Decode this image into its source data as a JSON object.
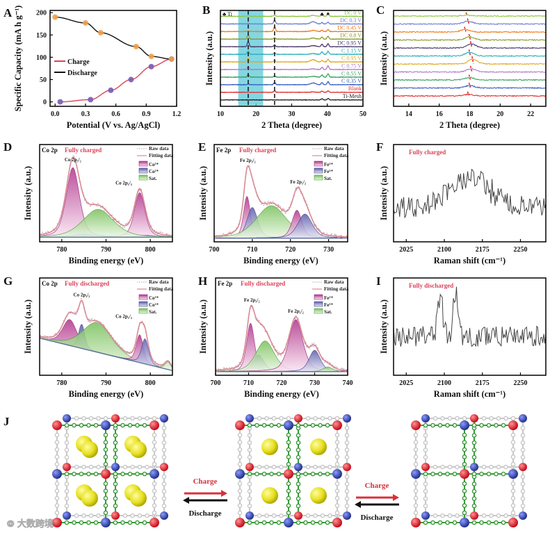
{
  "chart_data": [
    {
      "panel": "A",
      "type": "line",
      "xlabel": "Potential (V vs. Ag/AgCl)",
      "ylabel": "Specific Capacity (mA h g⁻¹)",
      "xlim": [
        -0.05,
        1.2
      ],
      "ylim": [
        -10,
        205
      ],
      "xticks": [
        "0.0",
        "0.3",
        "0.6",
        "0.9",
        "1.2"
      ],
      "yticks": [
        "0",
        "50",
        "100",
        "150",
        "200"
      ],
      "legend": [
        "Charge",
        "Discharge"
      ],
      "legend_position": "center-left",
      "series": [
        {
          "name": "Charge",
          "color": "#d9445a",
          "marker_color": "#7b5bb5",
          "x": [
            0.05,
            0.35,
            0.55,
            0.75,
            0.95,
            1.15
          ],
          "y": [
            0,
            5,
            26,
            50,
            79,
            96
          ]
        },
        {
          "name": "Discharge",
          "color": "#111111",
          "marker_color": "#f0a04b",
          "x": [
            0,
            0.3,
            0.45,
            0.8,
            0.95,
            1.15
          ],
          "y": [
            190,
            177,
            155,
            124,
            102,
            96
          ]
        }
      ]
    },
    {
      "panel": "B",
      "type": "line",
      "xlabel": "2 Theta (degree)",
      "ylabel": "Intensity (a.u.)",
      "xlim": [
        10,
        50
      ],
      "ylim": [
        0,
        13
      ],
      "xticks": [
        "10",
        "20",
        "30",
        "40",
        "50"
      ],
      "yticks": [],
      "highlight_range": [
        15,
        22
      ],
      "dashed_lines": [
        17.8,
        25.2
      ],
      "ti_label": "♣ Ti",
      "marker_club": "♣",
      "marker_spade": "♠",
      "peak_positions": [
        17.8,
        25.2,
        36,
        38.5,
        40.2
      ],
      "series": [
        {
          "label": "DC 0 V",
          "color": "#8dc63f",
          "peak_heights": [
            0.1,
            0.15,
            0.12,
            0.35,
            0.4
          ]
        },
        {
          "label": "DC 0.3 V",
          "color": "#6c7fd0",
          "peak_heights": [
            0.1,
            0.55,
            0.3,
            0.2,
            0.25
          ]
        },
        {
          "label": "DC 0.45 V",
          "color": "#f07a1a",
          "peak_heights": [
            0.1,
            0.7,
            0.15,
            0.2,
            0.25
          ]
        },
        {
          "label": "DC 0.8 V",
          "color": "#8a9a2a",
          "peak_heights": [
            0.6,
            0.2,
            0.15,
            0.3,
            0.4
          ]
        },
        {
          "label": "DC 0.95 V",
          "color": "#4a3a6a",
          "peak_heights": [
            0.7,
            0.25,
            0.15,
            0.35,
            0.4
          ]
        },
        {
          "label": "C 1.15 V",
          "color": "#2ab0b8",
          "peak_heights": [
            0.45,
            0.2,
            0.1,
            0.35,
            0.4
          ]
        },
        {
          "label": "C 0.95 V",
          "color": "#e0a820",
          "peak_heights": [
            0.5,
            0.2,
            0.3,
            0.2,
            0.35
          ]
        },
        {
          "label": "C 0.75 V",
          "color": "#b07ac8",
          "peak_heights": [
            0.4,
            0.15,
            0.1,
            0.3,
            0.5
          ]
        },
        {
          "label": "C 0.55 V",
          "color": "#3aa060",
          "peak_heights": [
            0.35,
            0.15,
            0.1,
            0.3,
            0.45
          ]
        },
        {
          "label": "C 0.35 V",
          "color": "#3a60c0",
          "peak_heights": [
            0.1,
            0.3,
            0.25,
            0.3,
            0.4
          ]
        },
        {
          "label": "Blank",
          "color": "#e03030",
          "peak_heights": [
            0.05,
            0.2,
            0.05,
            0.15,
            0.2
          ]
        },
        {
          "label": "Ti-Mesh",
          "color": "#222222",
          "peak_heights": [
            0,
            0,
            0,
            0.15,
            0.2
          ]
        }
      ]
    },
    {
      "panel": "C",
      "type": "line",
      "xlabel": "2 Theta (degree)",
      "ylabel": "Intensity (a.u.)",
      "xlim": [
        13,
        23
      ],
      "ylim": [
        0,
        12
      ],
      "xticks": [
        "14",
        "16",
        "18",
        "20",
        "22"
      ],
      "yticks": [],
      "series": [
        {
          "color": "#8dc63f",
          "peak_center": 17.8,
          "peak_height": 0.1
        },
        {
          "color": "#6c7fd0",
          "peak_center": 17.9,
          "peak_height": 0.35
        },
        {
          "color": "#f07a1a",
          "peak_center": 17.7,
          "peak_height": 0.3
        },
        {
          "color": "#8a9a2a",
          "peak_center": 18.0,
          "peak_height": 0.4
        },
        {
          "color": "#4a3a6a",
          "peak_center": 18.1,
          "peak_height": 0.5
        },
        {
          "color": "#2ab0b8",
          "peak_center": 18.0,
          "peak_height": 0.45
        },
        {
          "color": "#e0a820",
          "peak_center": 18.2,
          "peak_height": 0.6
        },
        {
          "color": "#b07ac8",
          "peak_center": 18.1,
          "peak_height": 0.4
        },
        {
          "color": "#3aa060",
          "peak_center": 18.0,
          "peak_height": 0.3
        },
        {
          "color": "#3a60c0",
          "peak_center": 18.0,
          "peak_height": 0.3
        },
        {
          "color": "#e03030",
          "peak_center": 17.9,
          "peak_height": 0.2
        }
      ]
    },
    {
      "panel": "D",
      "type": "area",
      "title": "Co 2p",
      "state": "Fully charged",
      "xlabel": "Binding energy (eV)",
      "ylabel": "Intensity (a.u.)",
      "xlim": [
        775,
        805
      ],
      "ylim": [
        0,
        1.05
      ],
      "xticks": [
        "780",
        "790",
        "800"
      ],
      "yticks": [],
      "baseline": [
        0.05,
        0.05
      ],
      "legend": [
        "Raw data",
        "Fitting data",
        "Co³⁺",
        "Co²⁺",
        "Sat."
      ],
      "peak_labels": [
        {
          "text": "Co 2p₃/₂",
          "at": 782.5
        },
        {
          "text": "Co 2p₁/₂",
          "at": 797.6
        }
      ],
      "components": [
        {
          "name": "Co³⁺",
          "kind": "a",
          "center": 782.5,
          "height": 0.75,
          "width": 1.5
        },
        {
          "name": "Co³⁺",
          "kind": "a",
          "center": 797.6,
          "height": 0.48,
          "width": 1.2
        },
        {
          "name": "Co²⁺",
          "kind": "b",
          "center": 785,
          "height": 0.03,
          "width": 3
        },
        {
          "name": "Co²⁺",
          "kind": "b",
          "center": 799,
          "height": 0.02,
          "width": 2
        },
        {
          "name": "Sat.",
          "kind": "c",
          "center": 788.2,
          "height": 0.3,
          "width": 3.5
        }
      ]
    },
    {
      "panel": "E",
      "type": "area",
      "title": "Fe 2p",
      "state": "Fully charged",
      "xlabel": "Binding energy (eV)",
      "ylabel": "Intensity (a.u.)",
      "xlim": [
        700,
        735
      ],
      "ylim": [
        0,
        1.05
      ],
      "xticks": [
        "700",
        "710",
        "720",
        "730"
      ],
      "yticks": [],
      "baseline": [
        0.04,
        0.04
      ],
      "legend": [
        "Raw data",
        "Fitting data",
        "Fe²⁺",
        "Fe³⁺",
        "Sat."
      ],
      "peak_labels": [
        {
          "text": "Fe 2p₃/₂",
          "at": 708.8
        },
        {
          "text": "Fe 2p₁/₂",
          "at": 722
        }
      ],
      "components": [
        {
          "name": "Fe²⁺",
          "kind": "a",
          "center": 708.6,
          "height": 0.45,
          "width": 0.9
        },
        {
          "name": "Fe³⁺",
          "kind": "b",
          "center": 710,
          "height": 0.33,
          "width": 1.4
        },
        {
          "name": "Sat.",
          "kind": "c",
          "center": 715,
          "height": 0.35,
          "width": 4
        },
        {
          "name": "Fe²⁺",
          "kind": "a",
          "center": 721.7,
          "height": 0.3,
          "width": 1.3
        },
        {
          "name": "Fe³⁺",
          "kind": "b",
          "center": 723.8,
          "height": 0.26,
          "width": 1.9
        }
      ]
    },
    {
      "panel": "F",
      "type": "line",
      "state": "Fully charged",
      "xlabel": "Raman shift (cm⁻¹)",
      "ylabel": "Intensity (a.u.)",
      "xlim": [
        2000,
        2300
      ],
      "ylim": [
        0,
        1
      ],
      "xticks": [
        "2025",
        "2100",
        "2175",
        "2250"
      ],
      "yticks": [],
      "baseline": 0.35,
      "noise": 0.22,
      "peaks": [
        {
          "center": 2150,
          "height": 0.32,
          "width": 40
        }
      ]
    },
    {
      "panel": "G",
      "type": "area",
      "title": "Co 2p",
      "state": "Fully discharged",
      "xlabel": "Binding energy (eV)",
      "ylabel": "Intensity (a.u.)",
      "xlim": [
        775,
        805
      ],
      "ylim": [
        0,
        1.05
      ],
      "xticks": [
        "780",
        "790",
        "800"
      ],
      "yticks": [],
      "baseline": [
        0.4,
        0.05
      ],
      "legend": [
        "Raw data",
        "Fitting data",
        "Co³⁺",
        "Co²⁺",
        "Sat."
      ],
      "peak_labels": [
        {
          "text": "Co 2p₃/₂",
          "at": 784.5
        },
        {
          "text": "Co 2p₁/₂",
          "at": 798
        }
      ],
      "components": [
        {
          "name": "Co³⁺",
          "kind": "a",
          "center": 781.8,
          "height": 0.28,
          "width": 1.6
        },
        {
          "name": "Co²⁺",
          "kind": "b",
          "center": 784.5,
          "height": 0.26,
          "width": 0.7
        },
        {
          "name": "Sat.",
          "kind": "c",
          "center": 788,
          "height": 0.32,
          "width": 3.3
        },
        {
          "name": "Co³⁺",
          "kind": "a",
          "center": 797.6,
          "height": 0.3,
          "width": 0.8
        },
        {
          "name": "Co²⁺",
          "kind": "b",
          "center": 798.8,
          "height": 0.27,
          "width": 0.8
        },
        {
          "name": "Sat.",
          "kind": "c",
          "center": 804,
          "height": 0.08,
          "width": 0.7
        }
      ]
    },
    {
      "panel": "H",
      "type": "area",
      "title": "Fe 2p",
      "state": "Fully discharged",
      "xlabel": "Binding energy (eV)",
      "ylabel": "Intensity (a.u.)",
      "xlim": [
        700,
        740
      ],
      "ylim": [
        0,
        1.05
      ],
      "xticks": [
        "700",
        "710",
        "720",
        "730",
        "740"
      ],
      "yticks": [],
      "baseline": [
        0.04,
        0.04
      ],
      "legend": [
        "Raw data",
        "Fitting data",
        "Fe²⁺",
        "Fe³⁺",
        "Sat."
      ],
      "peak_labels": [
        {
          "text": "Fe 2p₃/₂",
          "at": 711
        },
        {
          "text": "Fe 2p₁/₂",
          "at": 724.3
        }
      ],
      "components": [
        {
          "name": "Fe²⁺",
          "kind": "a",
          "center": 710.6,
          "height": 0.52,
          "width": 1.2
        },
        {
          "name": "Fe³⁺",
          "kind": "b",
          "center": 713,
          "height": 0.18,
          "width": 1.7
        },
        {
          "name": "Sat.",
          "kind": "c",
          "center": 715,
          "height": 0.33,
          "width": 2.8
        },
        {
          "name": "Fe²⁺",
          "kind": "a",
          "center": 724.3,
          "height": 0.56,
          "width": 2.1
        },
        {
          "name": "Fe³⁺",
          "kind": "b",
          "center": 730,
          "height": 0.23,
          "width": 1.7
        },
        {
          "name": "Sat.",
          "kind": "c",
          "center": 734,
          "height": 0.05,
          "width": 1.4
        }
      ]
    },
    {
      "panel": "I",
      "type": "line",
      "state": "Fully discharged",
      "xlabel": "Raman shift (cm⁻¹)",
      "ylabel": "Intensity (a.u.)",
      "xlim": [
        2000,
        2300
      ],
      "ylim": [
        0,
        1
      ],
      "xticks": [
        "2025",
        "2100",
        "2175",
        "2250"
      ],
      "yticks": [],
      "baseline": 0.4,
      "noise": 0.22,
      "peaks": [
        {
          "center": 2092,
          "height": 0.42,
          "width": 5
        },
        {
          "center": 2122,
          "height": 0.42,
          "width": 5
        }
      ]
    }
  ],
  "schematic": {
    "panel": "J",
    "structures": [
      {
        "guests_per_cell": 2
      },
      {
        "guests_per_cell": 1
      },
      {
        "guests_per_cell": 0
      }
    ],
    "arrows": [
      {
        "forward": "Charge",
        "backward": "Discharge"
      },
      {
        "forward": "Charge",
        "backward": "Discharge"
      }
    ],
    "colors": {
      "charge": "#d9303a",
      "discharge": "#111111",
      "guest": "#e6e020",
      "node_red": "#e0202a",
      "node_blue": "#2a3aa0",
      "linker_green": "#3a9a3a",
      "linker_gray": "#c8c8c8"
    }
  },
  "watermark": "大数跨境",
  "colors": {
    "component_a": "#b0338a",
    "component_b": "#6a6ab5",
    "component_c": "#7cc46a",
    "fit": "#d98a96",
    "raw": "#c9a0a8",
    "highlight": "#5bc8d8"
  }
}
